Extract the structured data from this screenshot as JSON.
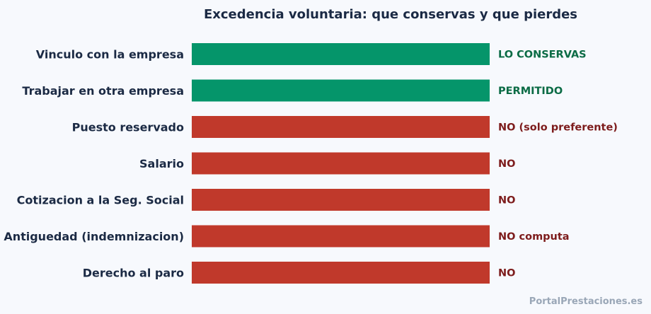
{
  "chart_data": {
    "type": "bar",
    "orientation": "horizontal",
    "title": "Excedencia voluntaria: que conservas y que pierdes",
    "xlabel": "",
    "ylabel": "",
    "grid": false,
    "categories": [
      "Vinculo con la empresa",
      "Trabajar en otra empresa",
      "Puesto reservado",
      "Salario",
      "Cotizacion a la Seg. Social",
      "Antiguedad (indemnizacion)",
      "Derecho al paro"
    ],
    "values": [
      1,
      1,
      1,
      1,
      1,
      1,
      1
    ],
    "status": [
      "kept",
      "kept",
      "lost",
      "lost",
      "lost",
      "lost",
      "lost"
    ],
    "value_labels": [
      "LO CONSERVAS",
      "PERMITIDO",
      "NO (solo preferente)",
      "NO",
      "NO",
      "NO computa",
      "NO"
    ],
    "colors": {
      "kept_bar": "#05956a",
      "lost_bar": "#c0392b",
      "kept_text": "#0b6b45",
      "lost_text": "#7d1c1c"
    }
  },
  "watermark": "PortalPrestaciones.es"
}
